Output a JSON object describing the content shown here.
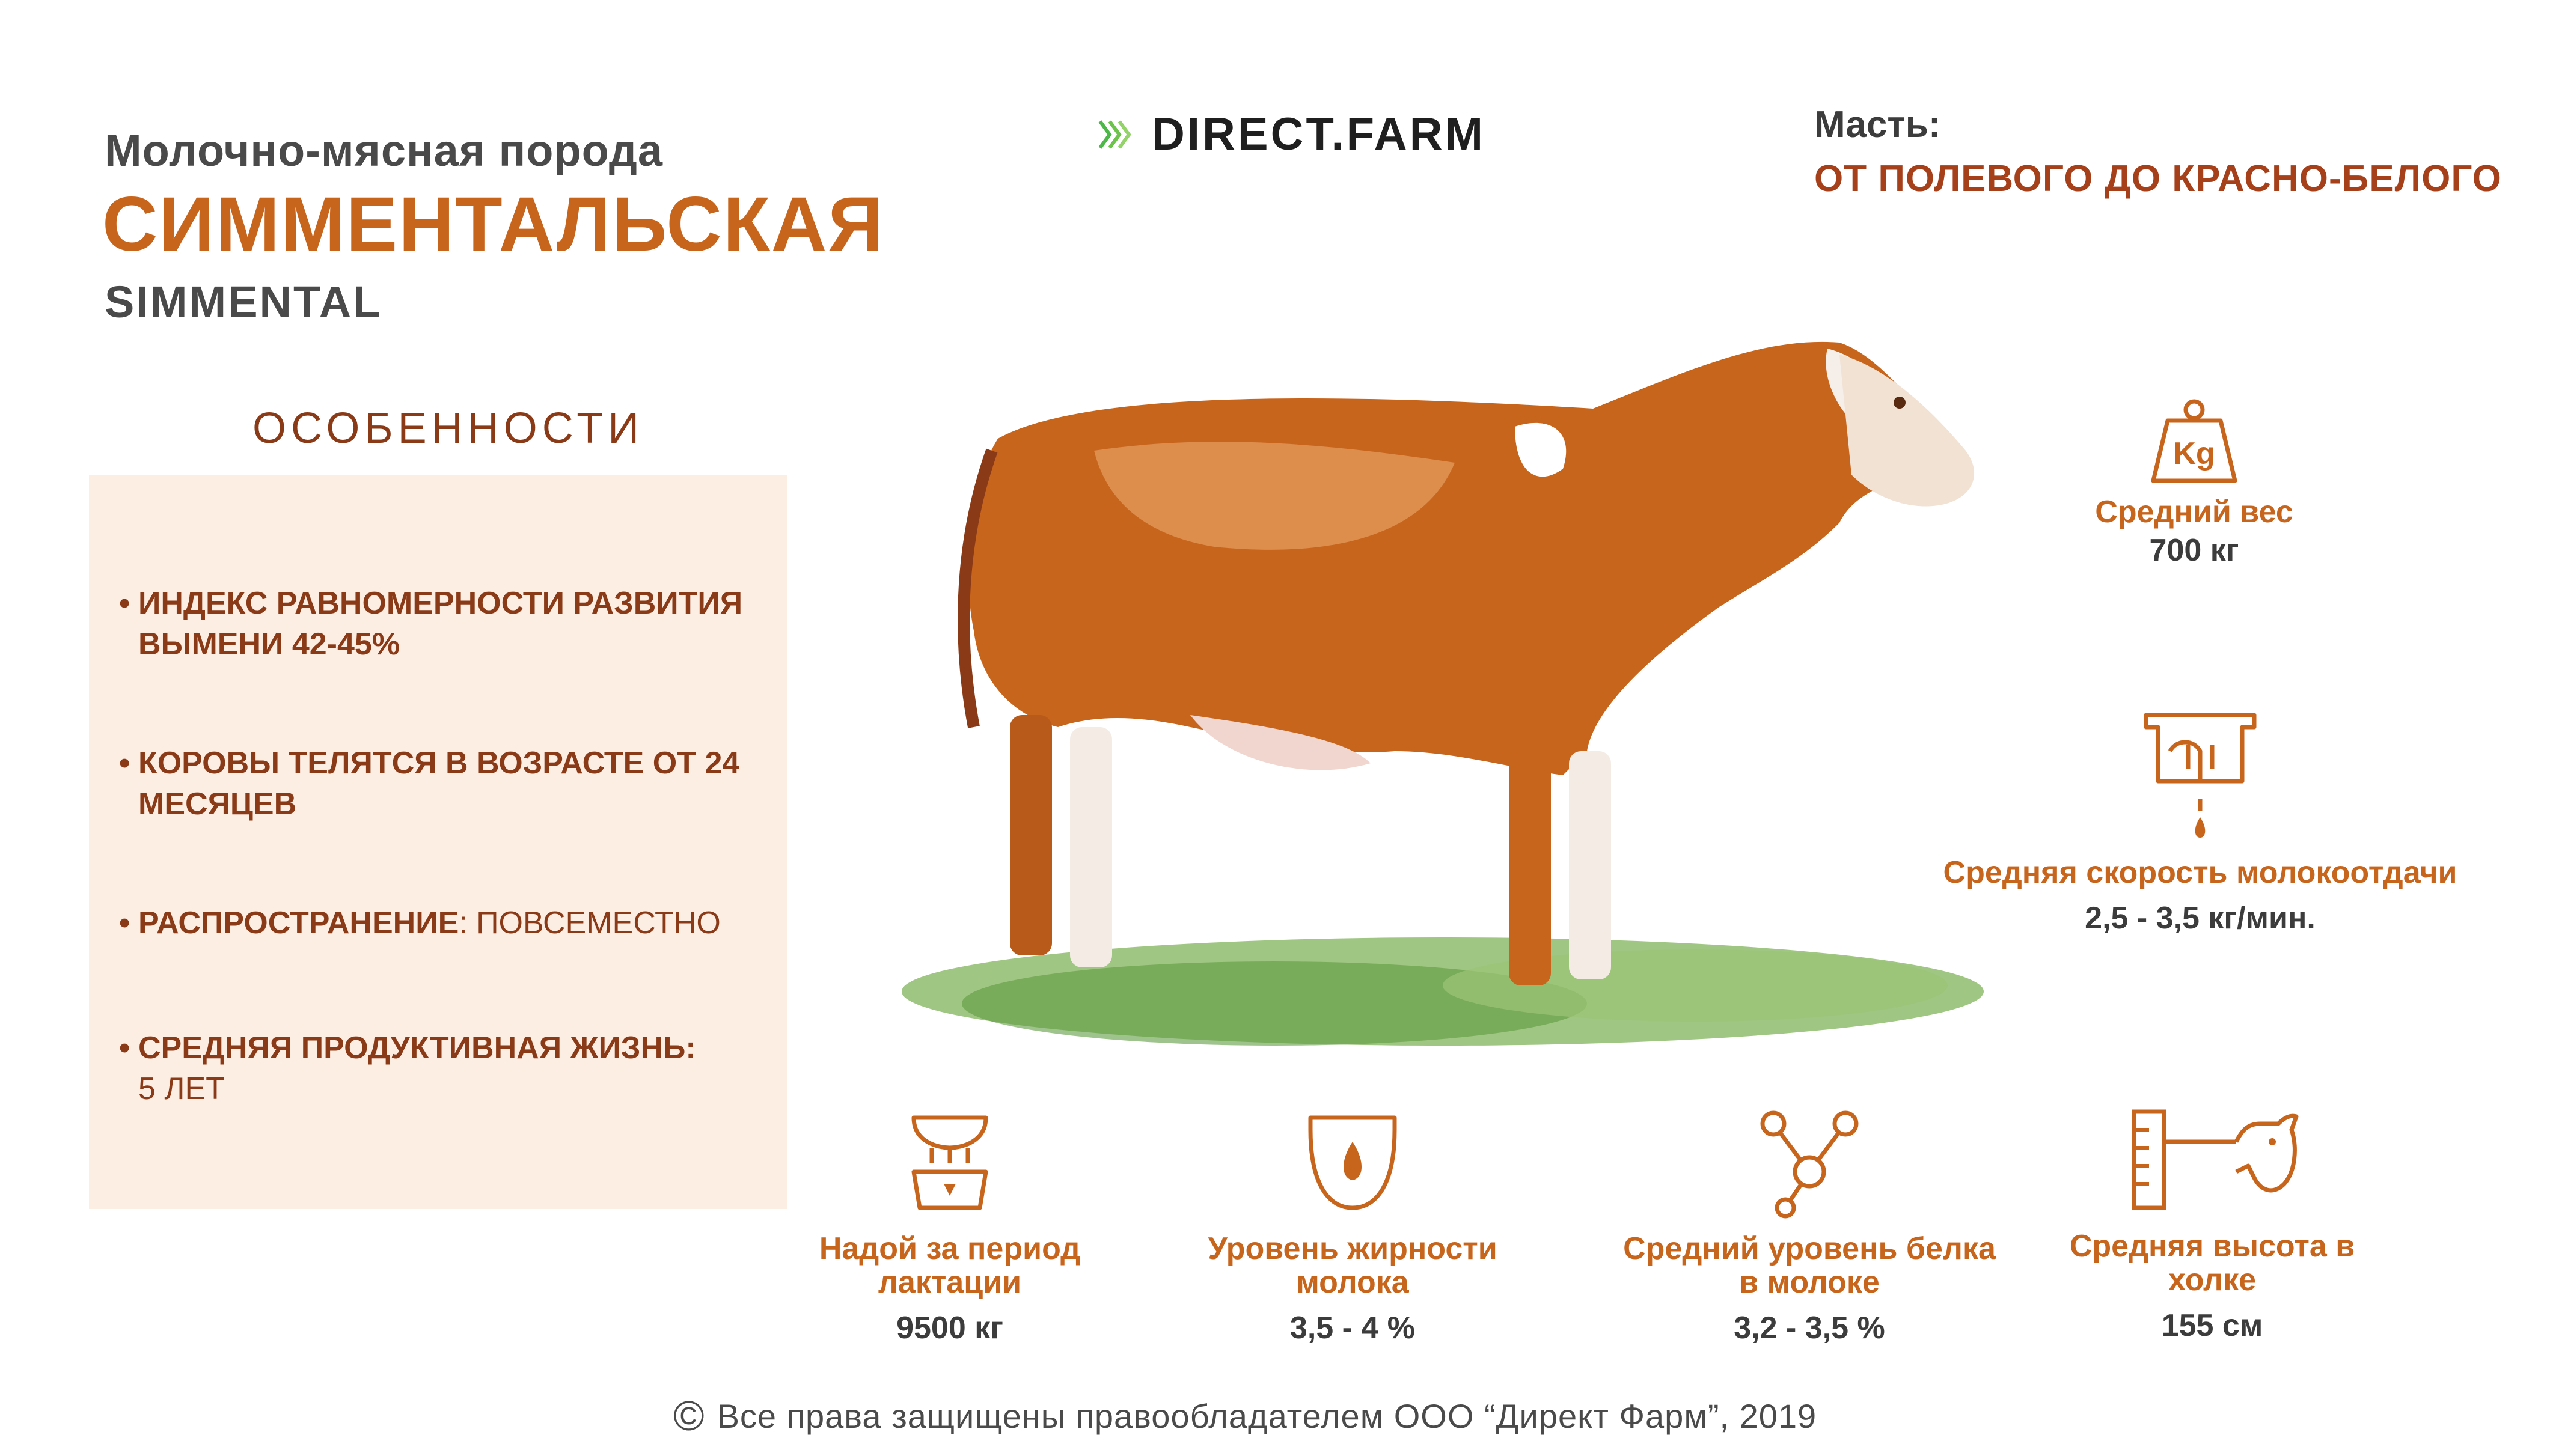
{
  "header": {
    "subtitle": "Молочно-мясная порода",
    "title": "СИММЕНТАЛЬСКАЯ",
    "latin_name": "SIMMENTAL"
  },
  "logo": {
    "text": "DIRECT.FARM",
    "icon": "chevrons-icon",
    "accent": "#4cb848"
  },
  "color": {
    "label": "Масть:",
    "value": "ОТ ПОЛЕВОГО ДО КРАСНО-БЕЛОГО"
  },
  "features": {
    "heading": "ОСОБЕННОСТИ",
    "items": [
      {
        "bold": "ИНДЕКС РАВНОМЕРНОСТИ РАЗВИТИЯ ВЫМЕНИ 42-45%",
        "plain": ""
      },
      {
        "bold": "КОРОВЫ ТЕЛЯТСЯ В ВОЗРАСТЕ ОТ 24 МЕСЯЦЕВ",
        "plain": ""
      },
      {
        "bold": "РАСПРОСТРАНЕНИЕ",
        "plain": ": ПОВСЕМЕСТНО"
      },
      {
        "bold": "СРЕДНЯЯ ПРОДУКТИВНАЯ ЖИЗНЬ:",
        "plain": "5 ЛЕТ"
      }
    ]
  },
  "stats": {
    "weight": {
      "label": "Средний вес",
      "value": "700 кг",
      "icon": "weight-kg-icon",
      "icon_text": "Kg"
    },
    "milking_speed": {
      "label": "Средняя скорость молокоотдачи",
      "value": "2,5 - 3,5 кг/мин.",
      "icon": "milking-machine-icon"
    },
    "yield": {
      "label": "Надой за период лактации",
      "value": "9500 кг",
      "icon": "udder-bucket-icon"
    },
    "fat": {
      "label": "Уровень жирности молока",
      "value": "3,5 - 4 %",
      "icon": "milk-drop-cup-icon"
    },
    "protein": {
      "label": "Средний уровень белка в молоке",
      "value": "3,2 - 3,5 %",
      "icon": "molecule-icon"
    },
    "height": {
      "label": "Средняя высота в холке",
      "value": "155 см",
      "icon": "cow-height-ruler-icon"
    }
  },
  "footer": {
    "copyright_symbol": "©",
    "text": "Все права защищены правообладателем  ООО “Директ Фарм”, 2019"
  },
  "colors": {
    "accent": "#c8651d",
    "dark_accent": "#8a3a16",
    "panel": "#fdeee4"
  }
}
